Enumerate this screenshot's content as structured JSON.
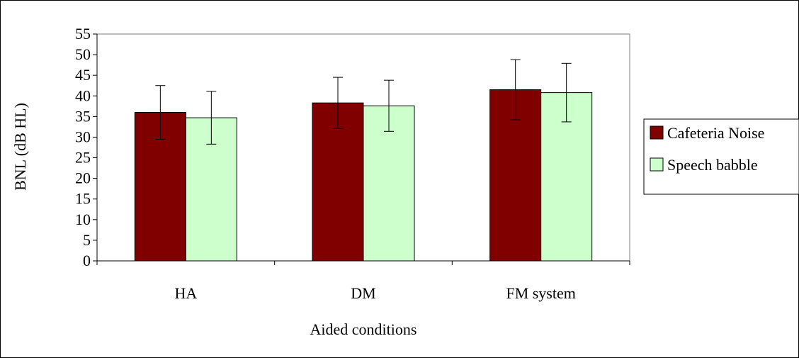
{
  "chart_data": {
    "type": "bar",
    "title": "",
    "xlabel": "Aided conditions",
    "ylabel": "BNL (dB HL)",
    "categories": [
      "HA",
      "DM",
      "FM system"
    ],
    "ylim": [
      0,
      55
    ],
    "yticks": [
      0,
      5,
      10,
      15,
      20,
      25,
      30,
      35,
      40,
      45,
      50,
      55
    ],
    "grid": false,
    "legend_position": "right",
    "series": [
      {
        "name": "Cafeteria Noise",
        "color": "#800000",
        "values": [
          36.0,
          38.3,
          41.5
        ],
        "error": [
          6.5,
          6.2,
          7.3
        ]
      },
      {
        "name": "Speech babble",
        "color": "#ccffcc",
        "values": [
          34.7,
          37.6,
          40.8
        ],
        "error": [
          6.4,
          6.2,
          7.1
        ]
      }
    ]
  }
}
